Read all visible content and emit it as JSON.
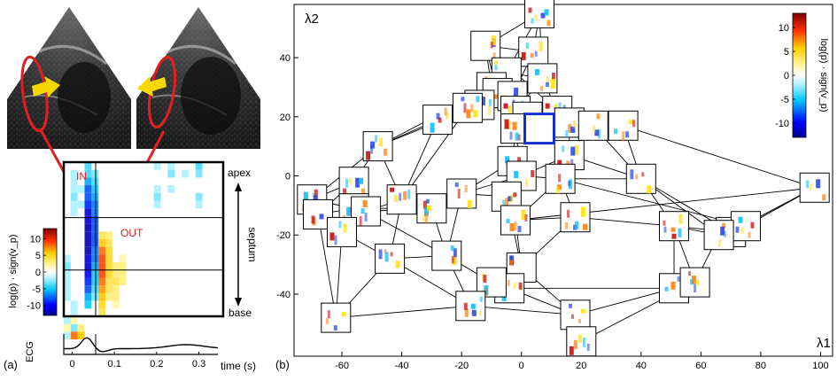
{
  "panels": [
    {
      "label": "(a)"
    },
    {
      "label": "(b)"
    }
  ],
  "echo": {
    "arrow_color": "#f5d800",
    "ellipse_color": "#e02020"
  },
  "chart_data": [
    {
      "type": "heatmap",
      "annotations": {
        "in_label": "IN",
        "out_label": "OUT"
      },
      "right_labels": {
        "top": "apex",
        "middle": "septum",
        "bottom": "base"
      },
      "colorbar": {
        "label": "log(p) · sign(v_p)",
        "ticks": [
          10,
          5,
          0,
          -5,
          -10
        ],
        "range": [
          -13,
          13
        ]
      },
      "ecg": {
        "ylabel": "ECG",
        "xlabel": "time (s)",
        "xticks": [
          "0",
          "0.1",
          "0.2",
          "0.3"
        ],
        "xlim": [
          -0.02,
          0.345
        ]
      },
      "cols": 23,
      "rows": 20,
      "cells": [
        [
          0,
          3,
          -4
        ],
        [
          1,
          3,
          -4
        ],
        [
          2,
          3,
          -6
        ],
        [
          3,
          3,
          -8
        ],
        [
          4,
          3,
          -8
        ],
        [
          5,
          3,
          -9
        ],
        [
          6,
          3,
          -11
        ],
        [
          7,
          3,
          -11
        ],
        [
          8,
          3,
          -12
        ],
        [
          9,
          3,
          -12
        ],
        [
          10,
          3,
          -12
        ],
        [
          11,
          3,
          -12
        ],
        [
          12,
          3,
          -11
        ],
        [
          13,
          3,
          -11
        ],
        [
          14,
          3,
          -10
        ],
        [
          15,
          3,
          -9
        ],
        [
          16,
          3,
          -8
        ],
        [
          17,
          3,
          -6
        ],
        [
          18,
          3,
          -5
        ],
        [
          1,
          4,
          -3
        ],
        [
          2,
          4,
          -4
        ],
        [
          3,
          4,
          -5
        ],
        [
          4,
          4,
          -6
        ],
        [
          5,
          4,
          -7
        ],
        [
          6,
          4,
          -7
        ],
        [
          7,
          4,
          -8
        ],
        [
          8,
          4,
          -8
        ],
        [
          9,
          4,
          -8
        ],
        [
          10,
          4,
          -8
        ],
        [
          11,
          4,
          -7
        ],
        [
          12,
          4,
          -7
        ],
        [
          13,
          4,
          -6
        ],
        [
          14,
          4,
          -5
        ],
        [
          15,
          4,
          -5
        ],
        [
          16,
          4,
          -4
        ],
        [
          17,
          4,
          -3
        ],
        [
          9,
          5,
          4
        ],
        [
          10,
          5,
          6
        ],
        [
          11,
          5,
          8
        ],
        [
          12,
          5,
          9
        ],
        [
          13,
          5,
          9
        ],
        [
          14,
          5,
          9
        ],
        [
          15,
          5,
          8
        ],
        [
          16,
          5,
          7
        ],
        [
          17,
          5,
          6
        ],
        [
          18,
          5,
          5
        ],
        [
          19,
          5,
          4
        ],
        [
          9,
          6,
          3
        ],
        [
          10,
          6,
          4
        ],
        [
          11,
          6,
          5
        ],
        [
          12,
          6,
          5
        ],
        [
          13,
          6,
          5
        ],
        [
          14,
          6,
          5
        ],
        [
          15,
          6,
          4
        ],
        [
          16,
          6,
          4
        ],
        [
          17,
          6,
          3
        ],
        [
          13,
          7,
          3
        ],
        [
          14,
          7,
          3
        ],
        [
          15,
          7,
          4
        ],
        [
          16,
          7,
          3
        ],
        [
          17,
          7,
          3
        ],
        [
          18,
          7,
          2
        ],
        [
          12,
          8,
          2
        ],
        [
          13,
          8,
          3
        ],
        [
          14,
          8,
          3
        ],
        [
          15,
          8,
          3
        ],
        [
          1,
          1,
          -2
        ],
        [
          2,
          1,
          -2
        ],
        [
          3,
          1,
          -2
        ],
        [
          4,
          1,
          -3
        ],
        [
          5,
          1,
          -2
        ],
        [
          6,
          1,
          -2
        ],
        [
          3,
          2,
          -2
        ],
        [
          5,
          2,
          -2
        ],
        [
          0,
          13,
          -2
        ],
        [
          3,
          13,
          -2
        ],
        [
          4,
          13,
          -3
        ],
        [
          5,
          13,
          -2
        ],
        [
          0,
          15,
          -2
        ],
        [
          1,
          15,
          -3
        ],
        [
          3,
          15,
          -2
        ],
        [
          1,
          17,
          -2
        ],
        [
          0,
          19,
          -4
        ],
        [
          1,
          19,
          -3
        ],
        [
          4,
          19,
          -3
        ],
        [
          5,
          19,
          -2
        ],
        [
          21,
          0,
          2
        ],
        [
          22,
          0,
          -2
        ],
        [
          20,
          0,
          -2
        ],
        [
          21,
          1,
          -3
        ],
        [
          22,
          1,
          8
        ],
        [
          22,
          2,
          6
        ],
        [
          21,
          2,
          3
        ],
        [
          20,
          1,
          2
        ],
        [
          19,
          1,
          -2
        ],
        [
          18,
          1,
          -2
        ],
        [
          17,
          0,
          -2
        ],
        [
          16,
          0,
          -2
        ],
        [
          15,
          0,
          -2
        ],
        [
          14,
          0,
          -2
        ],
        [
          13,
          0,
          -3
        ],
        [
          12,
          0,
          -2
        ]
      ]
    },
    {
      "type": "scatter",
      "xlabel": "λ1",
      "ylabel": "λ2",
      "xticks": [
        -60,
        -40,
        -20,
        0,
        20,
        40,
        60,
        80,
        100
      ],
      "yticks": [
        40,
        20,
        0,
        -20,
        -40
      ],
      "xlim": [
        -76,
        104
      ],
      "ylim": [
        -61,
        58
      ],
      "colorbar": {
        "label": "log(p) · sign(v_p)",
        "ticks": [
          10,
          5,
          0,
          -5,
          -10
        ],
        "range": [
          -13,
          13
        ]
      },
      "highlight_color": "#1530d0",
      "highlight": {
        "x": 6,
        "y": 16
      },
      "points": [
        [
          6,
          55
        ],
        [
          -12,
          44
        ],
        [
          4,
          42
        ],
        [
          -5,
          35
        ],
        [
          7,
          33
        ],
        [
          -10,
          30
        ],
        [
          -8,
          28
        ],
        [
          -3,
          27
        ],
        [
          -14,
          24
        ],
        [
          -18,
          23
        ],
        [
          -2,
          22
        ],
        [
          12,
          22
        ],
        [
          2,
          20
        ],
        [
          -28,
          19
        ],
        [
          -2,
          16
        ],
        [
          16,
          18
        ],
        [
          24,
          17
        ],
        [
          34,
          17
        ],
        [
          -48,
          10
        ],
        [
          16,
          7
        ],
        [
          -3,
          5
        ],
        [
          0,
          0
        ],
        [
          13,
          -1
        ],
        [
          -56,
          -2
        ],
        [
          -70,
          -8
        ],
        [
          40,
          -1
        ],
        [
          -20,
          -6
        ],
        [
          -40,
          -8
        ],
        [
          -30,
          -11
        ],
        [
          -56,
          -11
        ],
        [
          -52,
          -12
        ],
        [
          -68,
          -13
        ],
        [
          -5,
          -7
        ],
        [
          18,
          -14
        ],
        [
          -2,
          -15
        ],
        [
          -60,
          -19
        ],
        [
          70,
          -19
        ],
        [
          75,
          -17
        ],
        [
          51,
          -17
        ],
        [
          66,
          -20
        ],
        [
          98,
          -4
        ],
        [
          -25,
          -27
        ],
        [
          -44,
          -28
        ],
        [
          0,
          -31
        ],
        [
          -4,
          -38
        ],
        [
          -10,
          -36
        ],
        [
          51,
          -38
        ],
        [
          58,
          -36
        ],
        [
          -17,
          -44
        ],
        [
          18,
          -47
        ],
        [
          -62,
          -48
        ],
        [
          20,
          -56
        ]
      ],
      "edges": [
        [
          0,
          2
        ],
        [
          0,
          1
        ],
        [
          0,
          3
        ],
        [
          0,
          4
        ],
        [
          1,
          2
        ],
        [
          1,
          3
        ],
        [
          1,
          5
        ],
        [
          1,
          6
        ],
        [
          2,
          4
        ],
        [
          2,
          7
        ],
        [
          3,
          4
        ],
        [
          3,
          6
        ],
        [
          3,
          8
        ],
        [
          4,
          11
        ],
        [
          4,
          10
        ],
        [
          5,
          9
        ],
        [
          5,
          13
        ],
        [
          6,
          8
        ],
        [
          7,
          10
        ],
        [
          7,
          12
        ],
        [
          8,
          13
        ],
        [
          9,
          13
        ],
        [
          10,
          12
        ],
        [
          10,
          14
        ],
        [
          11,
          15
        ],
        [
          11,
          16
        ],
        [
          12,
          14
        ],
        [
          12,
          15
        ],
        [
          13,
          18
        ],
        [
          13,
          27
        ],
        [
          14,
          20
        ],
        [
          14,
          21
        ],
        [
          15,
          16
        ],
        [
          15,
          19
        ],
        [
          16,
          17
        ],
        [
          16,
          25
        ],
        [
          17,
          25
        ],
        [
          17,
          40
        ],
        [
          18,
          23
        ],
        [
          18,
          27
        ],
        [
          18,
          24
        ],
        [
          19,
          21
        ],
        [
          19,
          22
        ],
        [
          19,
          25
        ],
        [
          20,
          21
        ],
        [
          20,
          26
        ],
        [
          21,
          22
        ],
        [
          21,
          32
        ],
        [
          21,
          26
        ],
        [
          22,
          33
        ],
        [
          22,
          34
        ],
        [
          22,
          25
        ],
        [
          23,
          24
        ],
        [
          23,
          31
        ],
        [
          23,
          29
        ],
        [
          24,
          31
        ],
        [
          24,
          35
        ],
        [
          25,
          38
        ],
        [
          25,
          36
        ],
        [
          25,
          39
        ],
        [
          26,
          28
        ],
        [
          26,
          32
        ],
        [
          27,
          28
        ],
        [
          27,
          30
        ],
        [
          28,
          29
        ],
        [
          28,
          30
        ],
        [
          29,
          31
        ],
        [
          30,
          35
        ],
        [
          31,
          35
        ],
        [
          32,
          34
        ],
        [
          33,
          34
        ],
        [
          33,
          43
        ],
        [
          33,
          38
        ],
        [
          34,
          43
        ],
        [
          35,
          50
        ],
        [
          35,
          42
        ],
        [
          36,
          37
        ],
        [
          36,
          39
        ],
        [
          36,
          40
        ],
        [
          37,
          40
        ],
        [
          38,
          39
        ],
        [
          38,
          46
        ],
        [
          38,
          47
        ],
        [
          39,
          47
        ],
        [
          40,
          36
        ],
        [
          41,
          42
        ],
        [
          41,
          45
        ],
        [
          41,
          48
        ],
        [
          42,
          50
        ],
        [
          43,
          44
        ],
        [
          43,
          49
        ],
        [
          44,
          45
        ],
        [
          44,
          49
        ],
        [
          45,
          48
        ],
        [
          46,
          47
        ],
        [
          46,
          49
        ],
        [
          47,
          51
        ],
        [
          48,
          50
        ],
        [
          49,
          51
        ],
        [
          48,
          49
        ],
        [
          26,
          41
        ],
        [
          27,
          42
        ],
        [
          32,
          43
        ],
        [
          28,
          41
        ],
        [
          20,
          34
        ],
        [
          8,
          18
        ],
        [
          9,
          27
        ],
        [
          29,
          35
        ],
        [
          31,
          50
        ],
        [
          34,
          40
        ],
        [
          22,
          37
        ],
        [
          1,
          11
        ],
        [
          5,
          18
        ],
        [
          6,
          14
        ],
        [
          10,
          19
        ],
        [
          24,
          29
        ],
        [
          30,
          41
        ],
        [
          42,
          48
        ],
        [
          44,
          46
        ],
        [
          36,
          38
        ]
      ]
    }
  ]
}
